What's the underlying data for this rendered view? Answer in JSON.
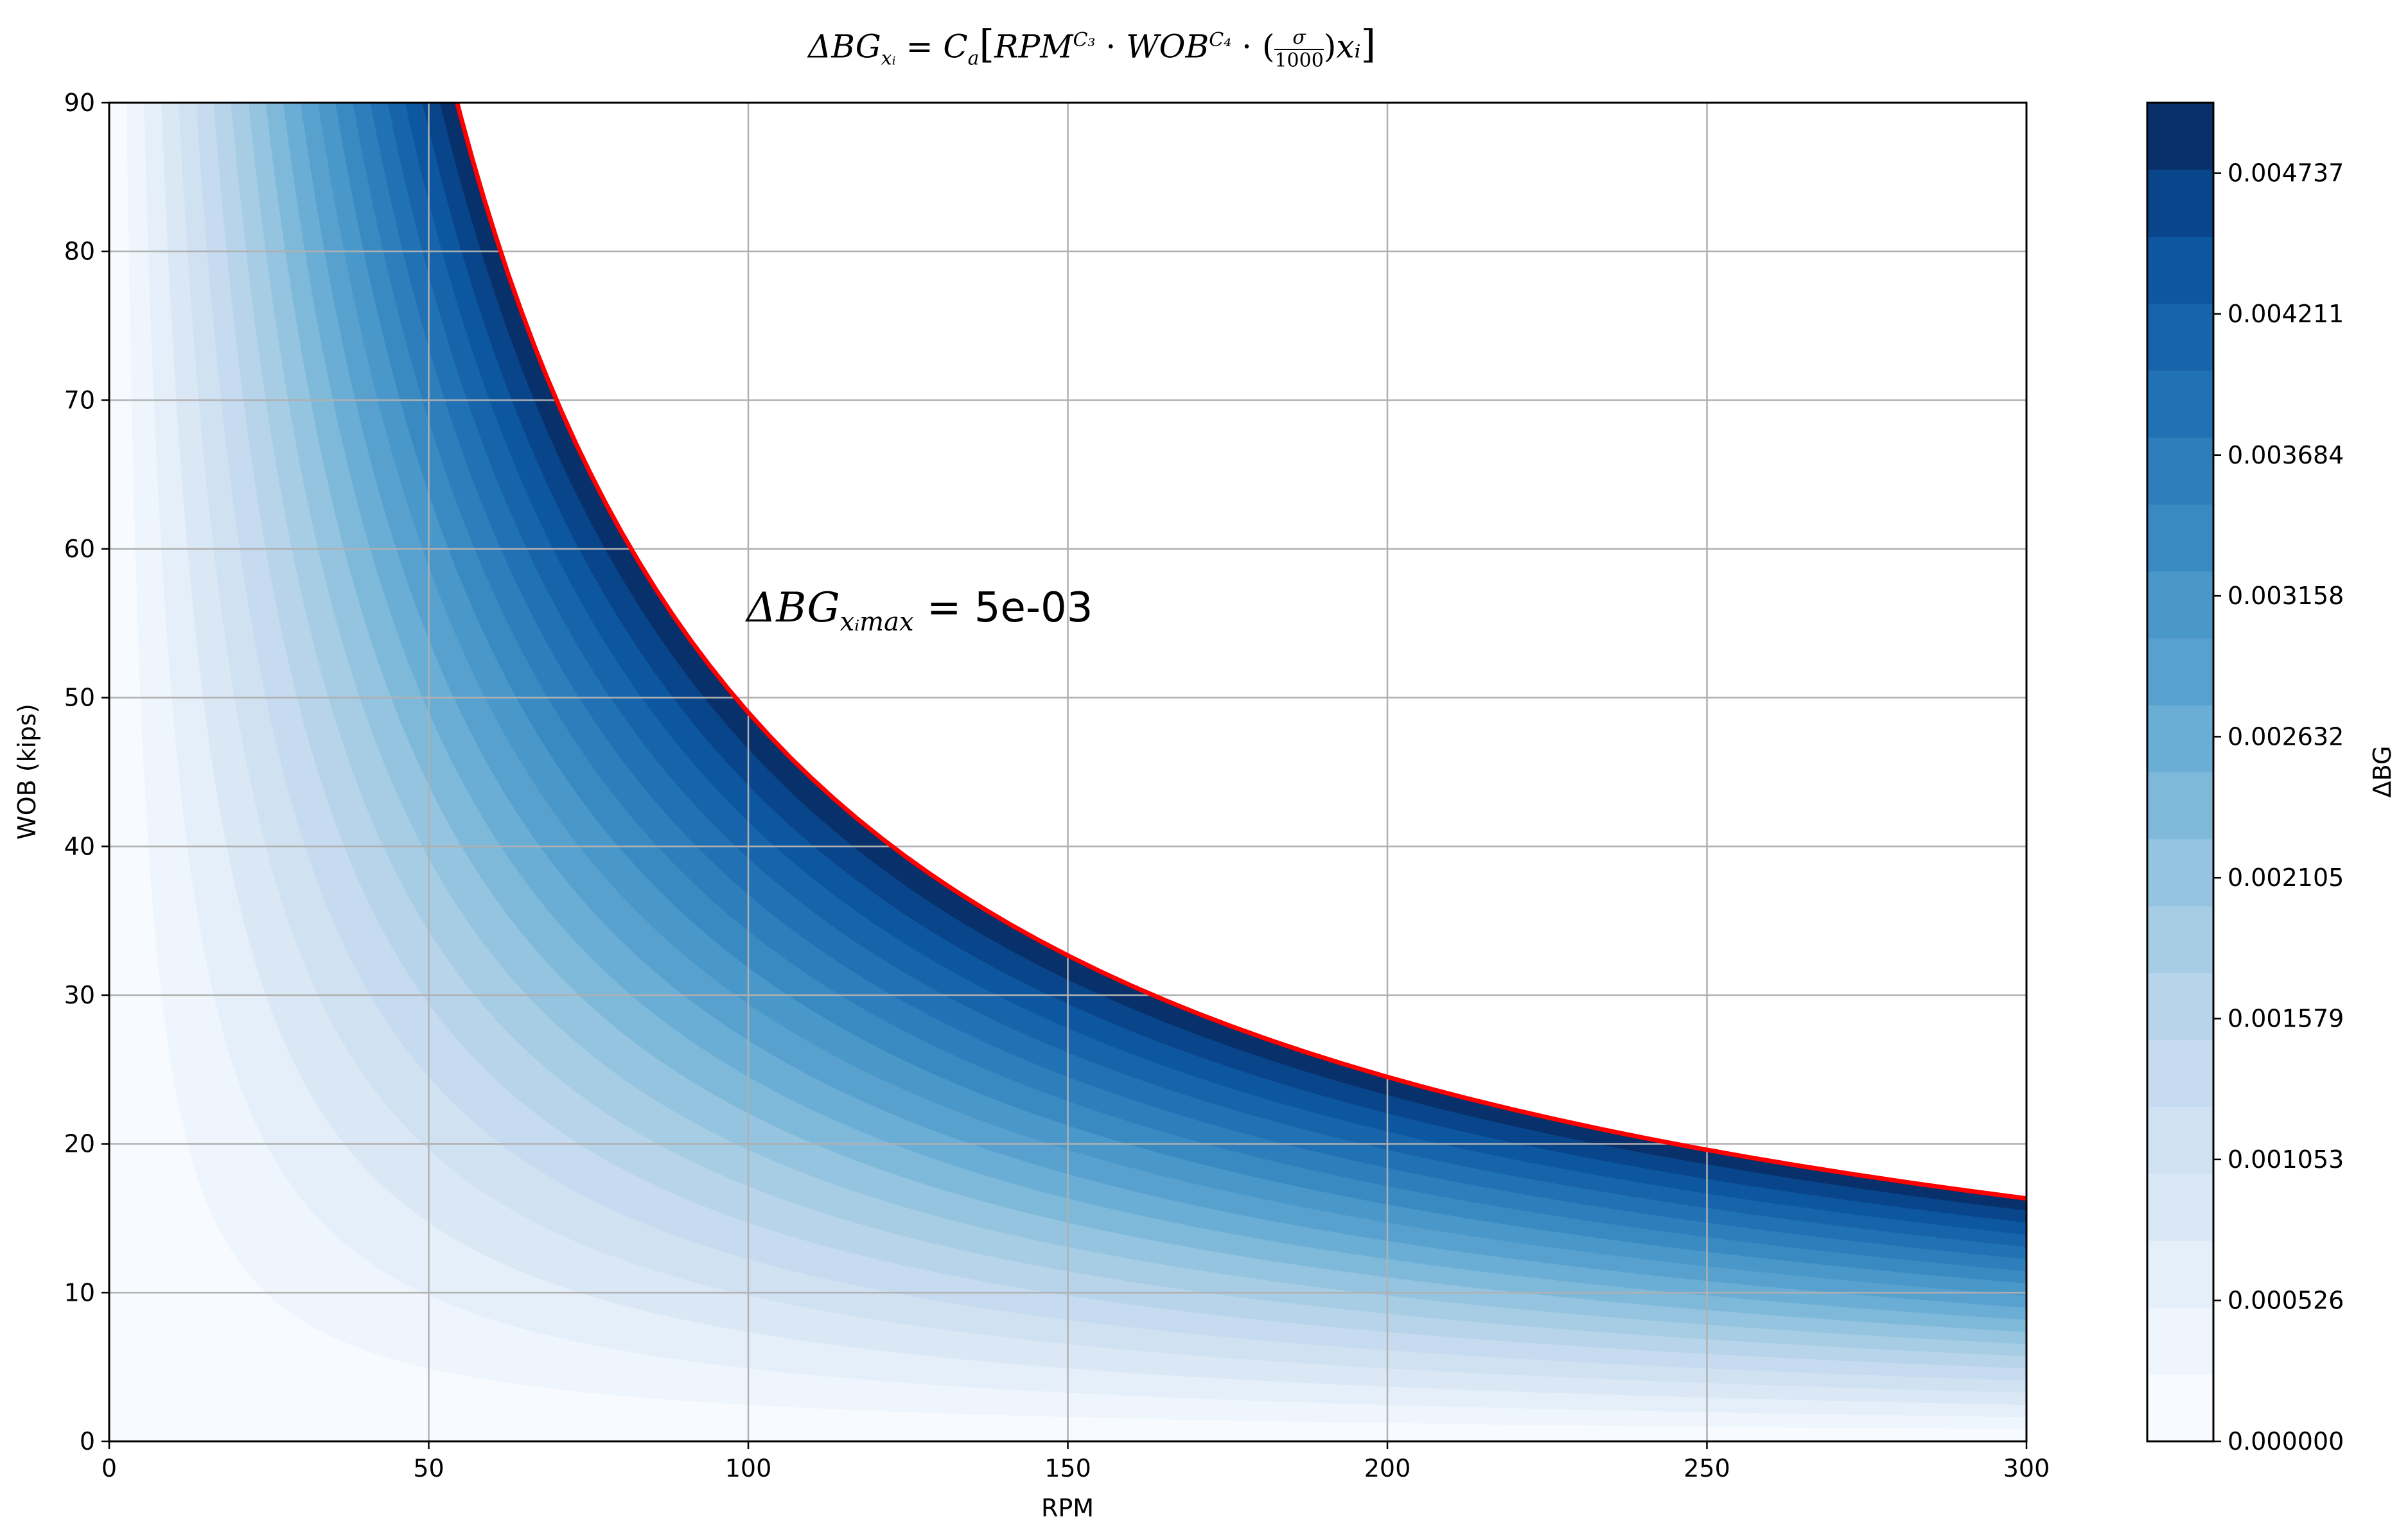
{
  "chart_data": {
    "type": "heatmap",
    "subtype": "filled-contour",
    "title": "ΔBG_{x_i} = C_a[RPM^{C_3} · WOB^{C_4} · (σ/1000) x_i]",
    "title_parts": {
      "lhs": "ΔBG",
      "lhs_sub": "xᵢ",
      "eq": " = ",
      "ca": "C",
      "ca_sub": "a",
      "open": "[",
      "rpm": "RPM",
      "rpm_sup": "C₃",
      "dot": " · ",
      "wob": "WOB",
      "wob_sup": "C₄",
      "frac_num": "σ",
      "frac_den": "1000",
      "tail": "xᵢ",
      "close": "]"
    },
    "xlabel": "RPM",
    "ylabel": "WOB (kips)",
    "xlim": [
      0,
      300
    ],
    "ylim": [
      0,
      90
    ],
    "xticks": [
      "0",
      "50",
      "100",
      "150",
      "200",
      "250",
      "300"
    ],
    "yticks": [
      "0",
      "10",
      "20",
      "30",
      "40",
      "50",
      "60",
      "70",
      "80",
      "90"
    ],
    "grid": true,
    "colormap": "Blues",
    "colorbar": {
      "label": "ΔBG",
      "range": [
        0,
        0.005
      ],
      "n_levels": 19,
      "tick_values": [
        0,
        0.000526,
        0.001053,
        0.001579,
        0.002105,
        0.002632,
        0.003158,
        0.003684,
        0.004211,
        0.004737
      ],
      "tick_labels": [
        "0.000000",
        "0.000526",
        "0.001053",
        "0.001579",
        "0.002105",
        "0.002632",
        "0.003158",
        "0.003684",
        "0.004211",
        "0.004737"
      ]
    },
    "model": {
      "form": "RPM * WOB",
      "max_product": 4900
    },
    "max_contour": {
      "color": "#ff0000",
      "points": [
        [
          52.5,
          90
        ],
        [
          60,
          81.7
        ],
        [
          70,
          70
        ],
        [
          80,
          61.25
        ],
        [
          100,
          49
        ],
        [
          120,
          40.8
        ],
        [
          150,
          32.7
        ],
        [
          200,
          24.5
        ],
        [
          250,
          19.6
        ],
        [
          300,
          16.3
        ]
      ]
    },
    "annotation": {
      "base": "ΔBG",
      "sub": "xᵢmax",
      "rest": " = 5e-03",
      "at": [
        100,
        55
      ]
    },
    "colors": {
      "levels": [
        "#f7fbff",
        "#eef5fc",
        "#e4eff9",
        "#dae8f6",
        "#d0e1f2",
        "#c6dbef",
        "#b7d4ea",
        "#a6cde4",
        "#94c4df",
        "#7fb9da",
        "#6aaed6",
        "#58a1cf",
        "#4a98c9",
        "#3a8ac2",
        "#2e7ebc",
        "#2171b5",
        "#1764ab",
        "#0d57a1",
        "#08458a",
        "#08306b"
      ],
      "frame": "#000000",
      "grid": "#b0b0b0",
      "line": "#ff0000"
    }
  }
}
